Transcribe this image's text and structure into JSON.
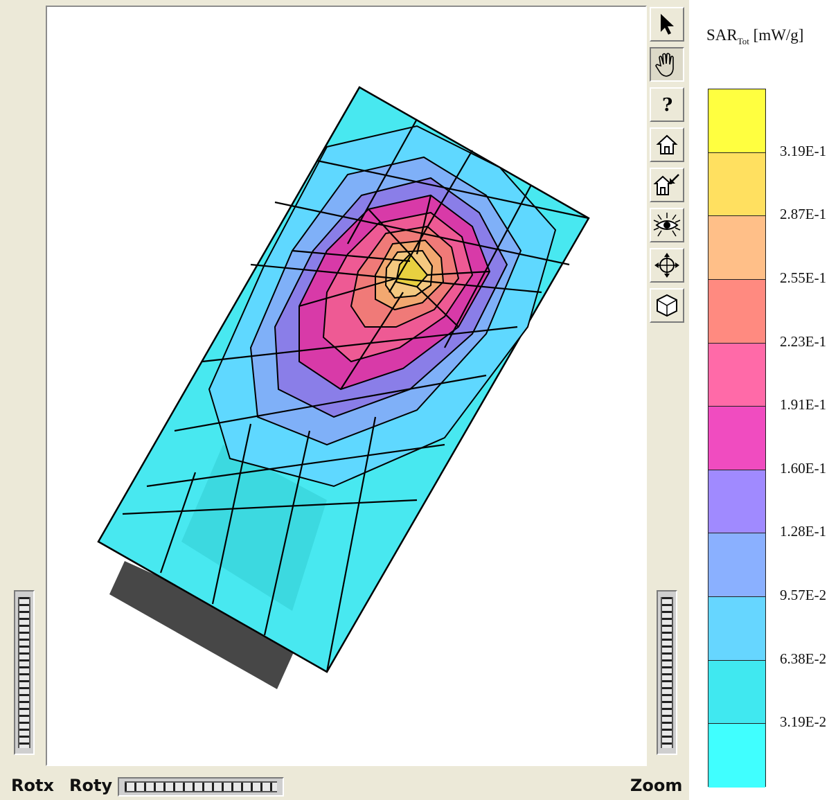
{
  "toolbar": {
    "tools": [
      {
        "name": "select-pointer",
        "icon": "arrow-cursor-icon",
        "pressed": false
      },
      {
        "name": "pan-hand",
        "icon": "hand-icon",
        "pressed": true
      },
      {
        "name": "help",
        "icon": "question-mark-icon",
        "pressed": false
      },
      {
        "name": "home",
        "icon": "home-icon",
        "pressed": false
      },
      {
        "name": "set-home",
        "icon": "set-home-icon",
        "pressed": false
      },
      {
        "name": "view-all",
        "icon": "eye-icon",
        "pressed": false
      },
      {
        "name": "seek",
        "icon": "crosshair-icon",
        "pressed": false
      },
      {
        "name": "projection",
        "icon": "cube-icon",
        "pressed": false
      }
    ]
  },
  "wheels": {
    "rotx_label": "Rotx",
    "roty_label": "Roty",
    "zoom_label": "Zoom"
  },
  "legend": {
    "quantity": "SAR",
    "subscript": "Tot",
    "unit": "[mW/g]",
    "ticks": [
      "3.19E-1",
      "2.87E-1",
      "2.55E-1",
      "2.23E-1",
      "1.91E-1",
      "1.60E-1",
      "1.28E-1",
      "9.57E-2",
      "6.38E-2",
      "3.19E-2"
    ],
    "colors": [
      "#ffff40",
      "#ffe060",
      "#ffbf88",
      "#ff8a80",
      "#ff6aa8",
      "#f04cc0",
      "#a08aff",
      "#8ab0ff",
      "#66d6ff",
      "#40e8f0",
      "#40ffff"
    ]
  }
}
